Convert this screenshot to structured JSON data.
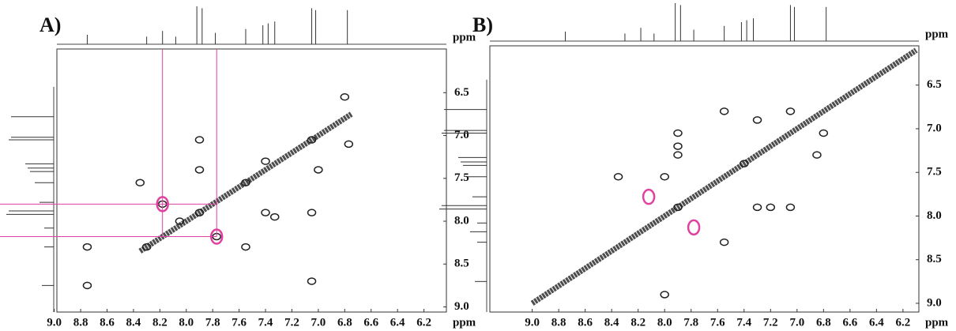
{
  "chart_data": [
    {
      "type": "scatter",
      "panel_label": "A)",
      "x_label": "ppm",
      "y_label": "ppm",
      "xlim": [
        8.98,
        6.03
      ],
      "ylim": [
        5.99,
        9.06
      ],
      "xticks": [
        {
          "value": 9,
          "label": "9.0"
        },
        8.8,
        8.6,
        8.4,
        8.2,
        {
          "value": 8,
          "label": "8.0"
        },
        7.8,
        7.6,
        7.4,
        7.2,
        {
          "value": 7,
          "label": "7.0"
        },
        6.8,
        6.6,
        6.4,
        6.2
      ],
      "yticks": [
        6.5,
        {
          "value": 7,
          "label": "7.0"
        },
        7.5,
        {
          "value": 8,
          "label": "8.0"
        },
        8.5,
        {
          "value": 9,
          "label": "9.0"
        }
      ],
      "color": "#222222",
      "highlight_color": "#e040a0",
      "guide_lines": true,
      "diagonal": {
        "x": [
          8.35,
          6.75
        ],
        "values": [
          8.35,
          6.75
        ]
      },
      "peaks": {
        "x": [
          8.35,
          8.18,
          7.9,
          7.9,
          7.55,
          7.4,
          7.33,
          7.05,
          7.05,
          6.8,
          6.77,
          7.77,
          8.75,
          8.75,
          7.55,
          7.0,
          8.3,
          7.9,
          7.4,
          8.05,
          7.05
        ],
        "values": [
          7.55,
          7.8,
          7.05,
          7.4,
          8.3,
          7.9,
          7.95,
          7.9,
          8.7,
          6.55,
          7.1,
          8.18,
          8.75,
          8.3,
          7.55,
          7.4,
          8.3,
          7.9,
          7.3,
          8.0,
          7.05
        ]
      },
      "highlights": {
        "x": [
          8.18,
          7.77
        ],
        "values": [
          7.8,
          8.18
        ]
      },
      "projection": {
        "ppm": [
          8.75,
          8.3,
          8.18,
          8.08,
          7.92,
          7.88,
          7.78,
          7.55,
          7.42,
          7.38,
          7.33,
          7.05,
          7.02,
          6.78
        ],
        "height": [
          0.25,
          0.2,
          0.35,
          0.2,
          1.0,
          0.95,
          0.3,
          0.4,
          0.5,
          0.55,
          0.6,
          0.95,
          0.9,
          0.9
        ]
      }
    },
    {
      "type": "scatter",
      "panel_label": "B)",
      "x_label": "ppm",
      "y_label": "ppm",
      "xlim": [
        9.32,
        6.08
      ],
      "ylim": [
        6.05,
        9.1
      ],
      "xticks": [
        {
          "value": 9,
          "label": "9.0"
        },
        8.8,
        8.6,
        8.4,
        8.2,
        {
          "value": 8,
          "label": "8.0"
        },
        7.8,
        7.6,
        7.4,
        7.2,
        {
          "value": 7,
          "label": "7.0"
        },
        6.8,
        6.6,
        6.4,
        6.2
      ],
      "yticks": [
        6.5,
        {
          "value": 7,
          "label": "7.0"
        },
        7.5,
        {
          "value": 8,
          "label": "8.0"
        },
        8.5,
        {
          "value": 9,
          "label": "9.0"
        }
      ],
      "color": "#222222",
      "highlight_color": "#e040a0",
      "guide_lines": false,
      "diagonal": {
        "x": [
          9.0,
          6.1
        ],
        "values": [
          9.0,
          6.1
        ]
      },
      "peaks": {
        "x": [
          7.9,
          7.9,
          7.9,
          7.05,
          7.3,
          7.2,
          7.55,
          8.35,
          8.0,
          7.05,
          6.85,
          7.55,
          8.0,
          7.3,
          6.8,
          7.9,
          7.4
        ],
        "values": [
          7.05,
          7.2,
          7.3,
          7.9,
          7.9,
          7.9,
          8.3,
          7.55,
          7.55,
          6.8,
          7.3,
          6.8,
          8.9,
          6.9,
          7.05,
          7.9,
          7.4
        ]
      },
      "highlights": {
        "x": [
          8.12,
          7.78
        ],
        "values": [
          7.78,
          8.13
        ]
      },
      "projection": {
        "ppm": [
          8.75,
          8.3,
          8.18,
          8.08,
          7.92,
          7.88,
          7.78,
          7.55,
          7.42,
          7.38,
          7.33,
          7.05,
          7.02,
          6.78
        ],
        "height": [
          0.25,
          0.2,
          0.35,
          0.2,
          1.0,
          0.95,
          0.3,
          0.4,
          0.5,
          0.55,
          0.6,
          0.95,
          0.9,
          0.9
        ]
      }
    }
  ]
}
